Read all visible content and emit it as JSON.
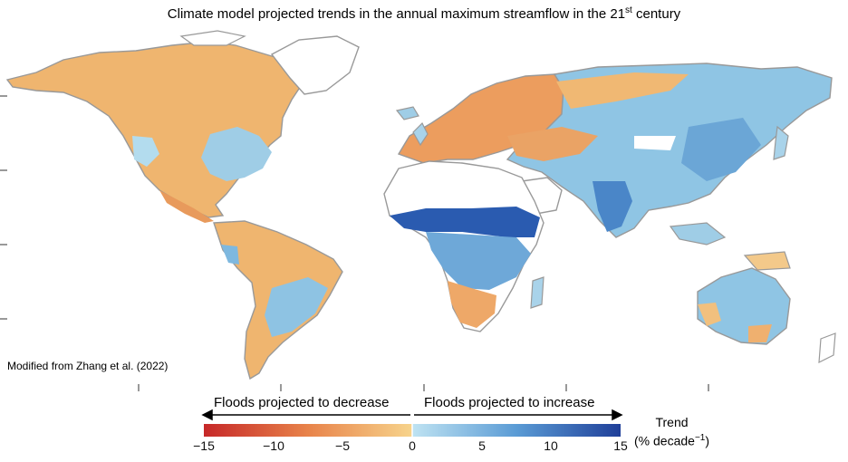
{
  "title": {
    "main": "Climate model projected trends in the annual maximum streamflow in the 21",
    "superscript": "st",
    "suffix": " century"
  },
  "credit": "Modified from Zhang et al. (2022)",
  "legend": {
    "decrease_label": "Floods projected to decrease",
    "increase_label": "Floods projected to increase",
    "trend_label_line1": "Trend",
    "trend_label_line2": "(% decade",
    "trend_label_exp": "−1",
    "trend_label_close": ")",
    "ticks": [
      "−15",
      "−10",
      "−5",
      "0",
      "5",
      "10",
      "15"
    ],
    "tick_values": [
      -15,
      -10,
      -5,
      0,
      5,
      10,
      15
    ],
    "range": [
      -15,
      15
    ],
    "colors": {
      "neg_strong": "#c62828",
      "neg_mid": "#e8834a",
      "neg_weak": "#f5cf82",
      "pos_weak": "#a8d6ec",
      "pos_mid": "#5a9bd5",
      "pos_strong": "#1f3f99"
    }
  },
  "regions": {
    "north_america_north": "decrease",
    "north_america_east": "increase",
    "mexico": "decrease",
    "south_america_amazon": "decrease",
    "south_america_south": "increase",
    "europe": "decrease",
    "north_asia": "increase",
    "south_asia": "increase",
    "east_asia": "increase",
    "africa_sahel": "increase",
    "africa_south": "decrease",
    "australia": "increase"
  }
}
